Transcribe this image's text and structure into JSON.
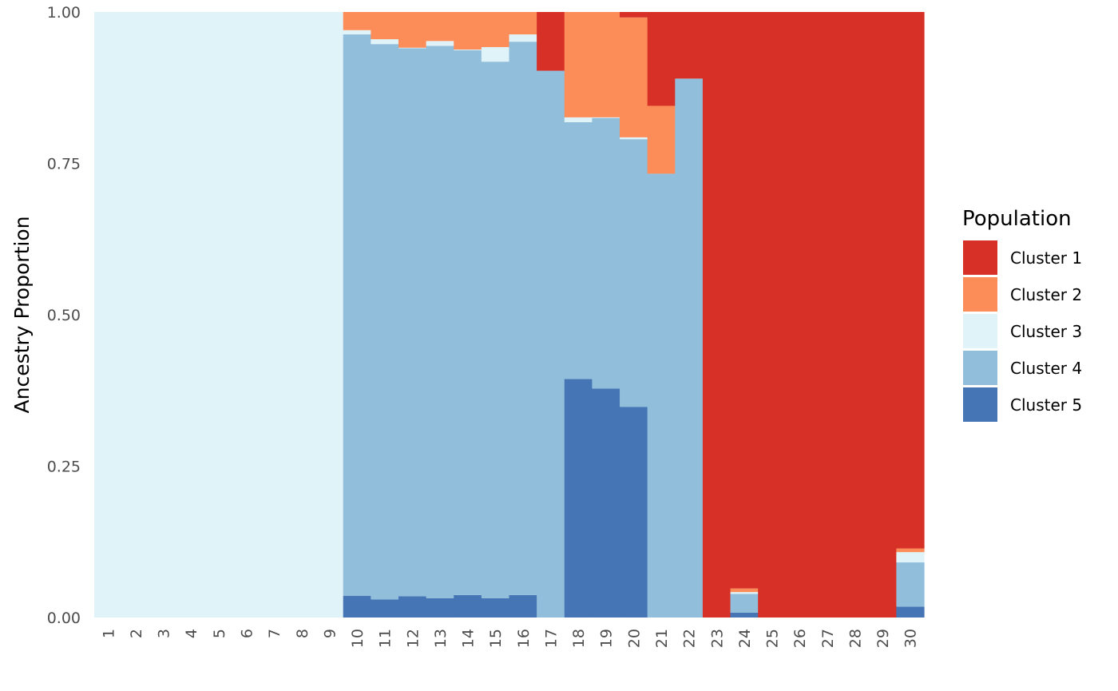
{
  "chart_data": {
    "type": "bar",
    "stacked": true,
    "title": "",
    "xlabel": "",
    "ylabel": "Ancestry Proportion",
    "ylim": [
      0,
      1
    ],
    "yticks": [
      "0.00",
      "0.25",
      "0.50",
      "0.75",
      "1.00"
    ],
    "grid": false,
    "legend_placement": "right",
    "legend_title": "Population",
    "categories": [
      "1",
      "2",
      "3",
      "4",
      "5",
      "6",
      "7",
      "8",
      "9",
      "10",
      "11",
      "12",
      "13",
      "14",
      "15",
      "16",
      "17",
      "18",
      "19",
      "20",
      "21",
      "22",
      "23",
      "24",
      "25",
      "26",
      "27",
      "28",
      "29",
      "30"
    ],
    "series": [
      {
        "name": "Cluster 5",
        "color": "#4575b4",
        "values": [
          0,
          0,
          0,
          0,
          0,
          0,
          0,
          0,
          0,
          0.036,
          0.03,
          0.035,
          0.032,
          0.037,
          0.032,
          0.037,
          0,
          0.394,
          0.378,
          0.348,
          0,
          0,
          0,
          0.008,
          0,
          0,
          0,
          0,
          0,
          0.018
        ]
      },
      {
        "name": "Cluster 4",
        "color": "#91bfdb",
        "values": [
          0,
          0,
          0,
          0,
          0,
          0,
          0,
          0,
          0,
          0.927,
          0.917,
          0.905,
          0.912,
          0.9,
          0.886,
          0.914,
          0.903,
          0.424,
          0.447,
          0.442,
          0.733,
          0.89,
          0,
          0.031,
          0,
          0,
          0,
          0,
          0,
          0.073
        ]
      },
      {
        "name": "Cluster 3",
        "color": "#e0f3f8",
        "values": [
          1,
          1,
          1,
          1,
          1,
          1,
          1,
          1,
          1,
          0.007,
          0.008,
          0.001,
          0.008,
          0.001,
          0.024,
          0.012,
          0,
          0.008,
          0.001,
          0.003,
          0,
          0,
          0,
          0.003,
          0,
          0,
          0,
          0,
          0,
          0.017
        ]
      },
      {
        "name": "Cluster 2",
        "color": "#fc8d59",
        "values": [
          0,
          0,
          0,
          0,
          0,
          0,
          0,
          0,
          0,
          0.03,
          0.045,
          0.059,
          0.048,
          0.062,
          0.058,
          0.037,
          0,
          0.174,
          0.174,
          0.198,
          0.112,
          0,
          0,
          0.006,
          0,
          0,
          0,
          0,
          0,
          0.006
        ]
      },
      {
        "name": "Cluster 1",
        "color": "#d73027",
        "values": [
          0,
          0,
          0,
          0,
          0,
          0,
          0,
          0,
          0,
          0,
          0,
          0,
          0,
          0,
          0,
          0,
          0.097,
          0,
          0,
          0.009,
          0.155,
          0.11,
          1,
          0.952,
          1,
          1,
          1,
          1,
          1,
          0.886
        ]
      }
    ],
    "legend_order": [
      "Cluster 1",
      "Cluster 2",
      "Cluster 3",
      "Cluster 4",
      "Cluster 5"
    ]
  }
}
